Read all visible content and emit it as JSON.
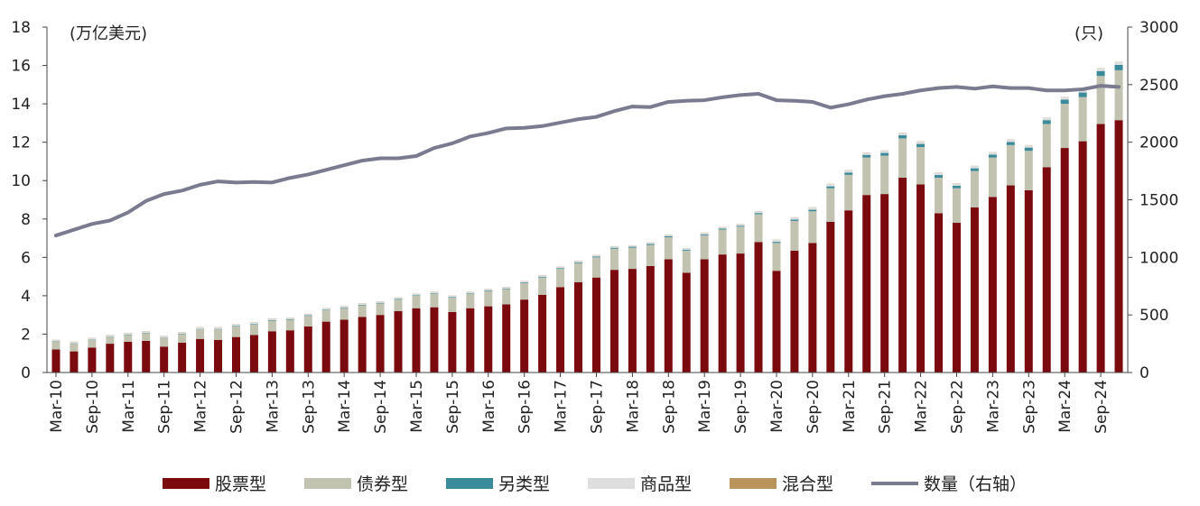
{
  "chart_data": {
    "type": "bar",
    "stacked": true,
    "title": "",
    "left_unit": "(万亿美元)",
    "right_unit": "(只)",
    "y_left": {
      "min": 0,
      "max": 18,
      "ticks": [
        "0",
        "2",
        "4",
        "6",
        "8",
        "10",
        "12",
        "14",
        "16",
        "18"
      ]
    },
    "y_right": {
      "min": 0,
      "max": 3000,
      "ticks": [
        "0",
        "500",
        "1000",
        "1500",
        "2000",
        "2500",
        "3000"
      ]
    },
    "x_tick_labels": [
      "Mar-10",
      "Sep-10",
      "Mar-11",
      "Sep-11",
      "Mar-12",
      "Sep-12",
      "Mar-13",
      "Sep-13",
      "Mar-14",
      "Sep-14",
      "Mar-15",
      "Sep-15",
      "Mar-16",
      "Sep-16",
      "Mar-17",
      "Sep-17",
      "Mar-18",
      "Sep-18",
      "Mar-19",
      "Sep-19",
      "Mar-20",
      "Sep-20",
      "Mar-21",
      "Sep-21",
      "Mar-22",
      "Sep-22",
      "Mar-23",
      "Sep-23",
      "Mar-24",
      "Sep-24"
    ],
    "legend_position": "bottom",
    "colors": {
      "stock": "#7a0a0e",
      "bond": "#c2c2b0",
      "alternative": "#3b8a9a",
      "commodity": "#dedede",
      "mixed": "#b8935a",
      "count": "#7a7a90"
    },
    "series": [
      {
        "key": "stock",
        "name": "股票型",
        "values": [
          1.2,
          1.1,
          1.3,
          1.5,
          1.6,
          1.65,
          1.35,
          1.55,
          1.75,
          1.7,
          1.85,
          1.95,
          2.15,
          2.2,
          2.4,
          2.65,
          2.75,
          2.9,
          3.0,
          3.2,
          3.35,
          3.4,
          3.15,
          3.35,
          3.45,
          3.55,
          3.8,
          4.05,
          4.45,
          4.7,
          4.95,
          5.35,
          5.4,
          5.55,
          5.9,
          5.2,
          5.9,
          6.15,
          6.2,
          6.8,
          5.3,
          6.35,
          6.75,
          7.85,
          8.45,
          9.25,
          9.3,
          10.15,
          9.8,
          8.3,
          7.8,
          8.6,
          9.15,
          9.75,
          9.5,
          10.7,
          11.7,
          12.05,
          12.95,
          13.15
        ]
      },
      {
        "key": "bond",
        "name": "债券型",
        "values": [
          0.4,
          0.4,
          0.4,
          0.35,
          0.35,
          0.4,
          0.45,
          0.45,
          0.5,
          0.55,
          0.55,
          0.55,
          0.55,
          0.55,
          0.55,
          0.6,
          0.6,
          0.6,
          0.6,
          0.6,
          0.65,
          0.7,
          0.75,
          0.75,
          0.8,
          0.8,
          0.85,
          0.9,
          0.95,
          1.0,
          1.05,
          1.1,
          1.1,
          1.1,
          1.15,
          1.15,
          1.25,
          1.3,
          1.4,
          1.45,
          1.45,
          1.55,
          1.65,
          1.75,
          1.85,
          1.95,
          2.0,
          2.05,
          1.95,
          1.85,
          1.8,
          1.9,
          2.05,
          2.1,
          2.05,
          2.25,
          2.3,
          2.3,
          2.5,
          2.6
        ]
      },
      {
        "key": "alternative",
        "name": "另类型",
        "values": [
          0.02,
          0.02,
          0.02,
          0.02,
          0.02,
          0.02,
          0.02,
          0.02,
          0.02,
          0.02,
          0.03,
          0.03,
          0.03,
          0.03,
          0.03,
          0.03,
          0.03,
          0.03,
          0.03,
          0.03,
          0.03,
          0.03,
          0.03,
          0.03,
          0.03,
          0.03,
          0.04,
          0.04,
          0.04,
          0.04,
          0.04,
          0.05,
          0.05,
          0.05,
          0.05,
          0.05,
          0.05,
          0.05,
          0.05,
          0.06,
          0.06,
          0.07,
          0.08,
          0.1,
          0.12,
          0.14,
          0.14,
          0.16,
          0.16,
          0.14,
          0.13,
          0.14,
          0.15,
          0.16,
          0.17,
          0.2,
          0.22,
          0.24,
          0.26,
          0.28
        ]
      },
      {
        "key": "commodity",
        "name": "商品型",
        "values": [
          0.08,
          0.08,
          0.08,
          0.08,
          0.08,
          0.08,
          0.08,
          0.08,
          0.08,
          0.08,
          0.08,
          0.08,
          0.08,
          0.07,
          0.07,
          0.07,
          0.07,
          0.07,
          0.07,
          0.07,
          0.07,
          0.07,
          0.07,
          0.07,
          0.07,
          0.07,
          0.07,
          0.07,
          0.07,
          0.07,
          0.07,
          0.07,
          0.07,
          0.07,
          0.07,
          0.07,
          0.08,
          0.08,
          0.08,
          0.09,
          0.1,
          0.11,
          0.12,
          0.12,
          0.12,
          0.12,
          0.12,
          0.13,
          0.13,
          0.12,
          0.12,
          0.12,
          0.12,
          0.12,
          0.12,
          0.12,
          0.13,
          0.13,
          0.14,
          0.15
        ]
      },
      {
        "key": "mixed",
        "name": "混合型",
        "values": [
          0.01,
          0.01,
          0.01,
          0.01,
          0.01,
          0.01,
          0.01,
          0.01,
          0.01,
          0.01,
          0.01,
          0.01,
          0.01,
          0.01,
          0.01,
          0.01,
          0.01,
          0.01,
          0.01,
          0.01,
          0.01,
          0.01,
          0.01,
          0.01,
          0.01,
          0.01,
          0.01,
          0.01,
          0.01,
          0.01,
          0.01,
          0.01,
          0.01,
          0.01,
          0.01,
          0.01,
          0.01,
          0.01,
          0.01,
          0.01,
          0.01,
          0.01,
          0.01,
          0.01,
          0.01,
          0.01,
          0.01,
          0.01,
          0.01,
          0.01,
          0.01,
          0.01,
          0.01,
          0.01,
          0.01,
          0.01,
          0.01,
          0.01,
          0.01,
          0.01
        ]
      }
    ],
    "line": {
      "key": "count",
      "name": "数量（右轴）",
      "axis": "right",
      "values": [
        1190,
        1240,
        1290,
        1320,
        1390,
        1490,
        1550,
        1580,
        1630,
        1660,
        1650,
        1655,
        1650,
        1690,
        1720,
        1760,
        1800,
        1840,
        1860,
        1860,
        1880,
        1950,
        1990,
        2050,
        2080,
        2120,
        2125,
        2140,
        2170,
        2200,
        2220,
        2270,
        2310,
        2305,
        2350,
        2360,
        2365,
        2390,
        2410,
        2420,
        2365,
        2360,
        2350,
        2300,
        2330,
        2370,
        2400,
        2420,
        2450,
        2470,
        2480,
        2465,
        2485,
        2470,
        2470,
        2450,
        2450,
        2460,
        2490,
        2480
      ]
    }
  }
}
